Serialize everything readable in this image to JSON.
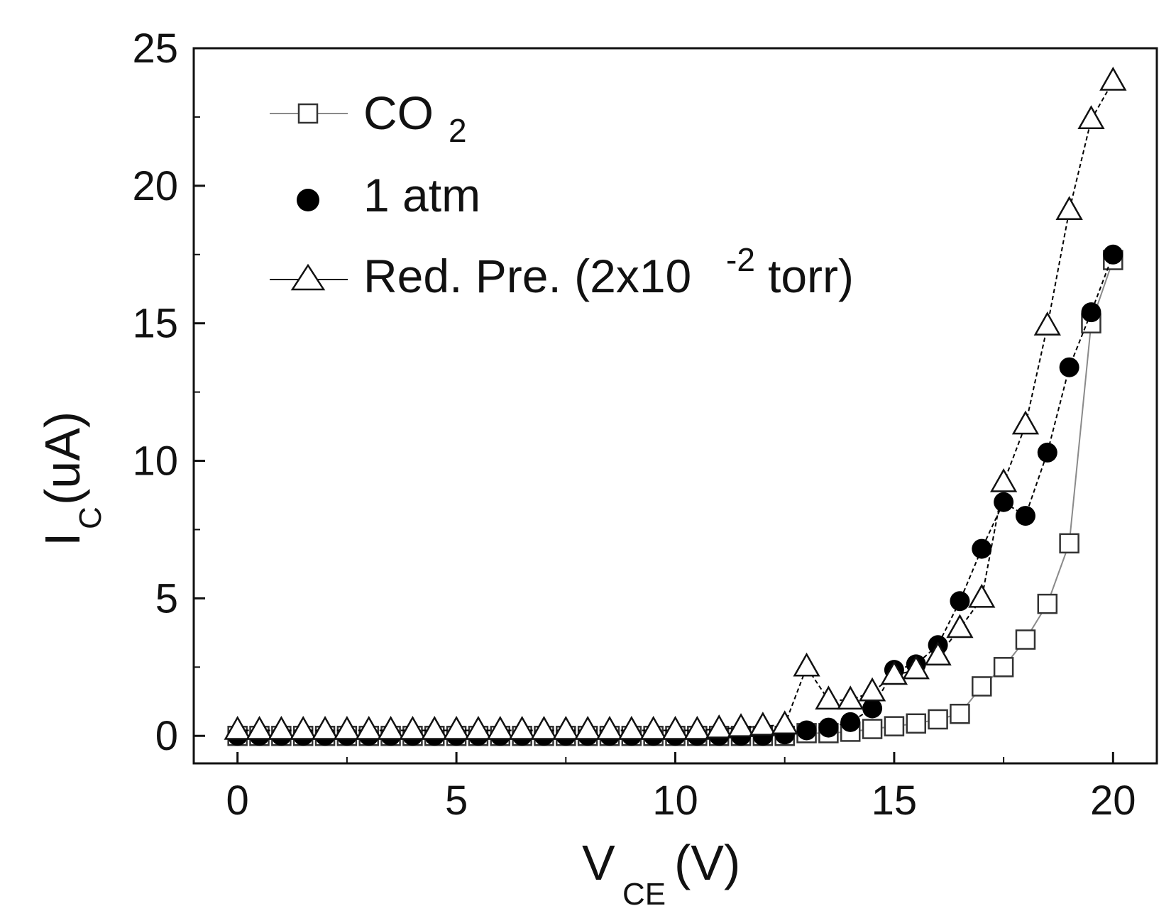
{
  "chart_data": {
    "type": "scatter",
    "title": "",
    "xlabel": {
      "main": "V",
      "sub": "CE",
      "unit": "(V)"
    },
    "ylabel": {
      "main": "I",
      "sub": "C",
      "unit": " (uA)"
    },
    "xlim": [
      -1,
      21
    ],
    "ylim": [
      -1,
      25
    ],
    "xticks": [
      0,
      5,
      10,
      15,
      20
    ],
    "yticks": [
      0,
      5,
      10,
      15,
      20,
      25
    ],
    "grid": false,
    "legend_position": "top-left",
    "series": [
      {
        "name": "CO2",
        "legend": {
          "main": "CO",
          "sub": "2",
          "sup": "",
          "tail": ""
        },
        "marker": "open-square",
        "color": "#8a8a8a",
        "line_style": "solid",
        "x": [
          0,
          0.5,
          1,
          1.5,
          2,
          2.5,
          3,
          3.5,
          4,
          4.5,
          5,
          5.5,
          6,
          6.5,
          7,
          7.5,
          8,
          8.5,
          9,
          9.5,
          10,
          10.5,
          11,
          11.5,
          12,
          12.5,
          13,
          13.5,
          14,
          14.5,
          15,
          15.5,
          16,
          16.5,
          17,
          17.5,
          18,
          18.5,
          19,
          19.5,
          20
        ],
        "y": [
          0,
          0,
          0,
          0,
          0,
          0,
          0,
          0,
          0,
          0,
          0,
          0,
          0,
          0,
          0,
          0,
          0,
          0,
          0,
          0,
          0,
          0,
          0,
          0,
          0,
          0,
          0.1,
          0.1,
          0.15,
          0.25,
          0.35,
          0.45,
          0.6,
          0.8,
          1.8,
          2.5,
          3.5,
          4.8,
          7.0,
          15.0,
          17.3
        ]
      },
      {
        "name": "1 atm",
        "legend": {
          "main": "1 atm",
          "sub": "",
          "sup": "",
          "tail": ""
        },
        "marker": "filled-circle",
        "color": "#000000",
        "line_style": "dashed",
        "x": [
          0,
          0.5,
          1,
          1.5,
          2,
          2.5,
          3,
          3.5,
          4,
          4.5,
          5,
          5.5,
          6,
          6.5,
          7,
          7.5,
          8,
          8.5,
          9,
          9.5,
          10,
          10.5,
          11,
          11.5,
          12,
          12.5,
          13,
          13.5,
          14,
          14.5,
          15,
          15.5,
          16,
          16.5,
          17,
          17.5,
          18,
          18.5,
          19,
          19.5,
          20
        ],
        "y": [
          0,
          0,
          0,
          0,
          0,
          0,
          0,
          0,
          0,
          0,
          0,
          0,
          0,
          0,
          0,
          0,
          0,
          0,
          0,
          0,
          0,
          0,
          0,
          0,
          0,
          0.05,
          0.2,
          0.3,
          0.5,
          1.0,
          2.4,
          2.6,
          3.3,
          4.9,
          6.8,
          8.5,
          8.0,
          10.3,
          13.4,
          15.4,
          17.5
        ]
      },
      {
        "name": "Red. Pre. (2x10-2torr)",
        "legend": {
          "main": "Red. Pre. (2x10",
          "sub": "",
          "sup": "-2",
          "tail": "torr)"
        },
        "marker": "open-triangle",
        "color": "#000000",
        "line_style": "dashed",
        "x": [
          0,
          0.5,
          1,
          1.5,
          2,
          2.5,
          3,
          3.5,
          4,
          4.5,
          5,
          5.5,
          6,
          6.5,
          7,
          7.5,
          8,
          8.5,
          9,
          9.5,
          10,
          10.5,
          11,
          11.5,
          12,
          12.5,
          13,
          13.5,
          14,
          14.5,
          15,
          15.5,
          16,
          16.5,
          17,
          17.5,
          18,
          18.5,
          19,
          19.5,
          20
        ],
        "y": [
          0.2,
          0.2,
          0.2,
          0.2,
          0.2,
          0.2,
          0.2,
          0.2,
          0.2,
          0.2,
          0.2,
          0.2,
          0.2,
          0.2,
          0.2,
          0.2,
          0.2,
          0.2,
          0.2,
          0.2,
          0.2,
          0.2,
          0.25,
          0.3,
          0.35,
          0.4,
          2.5,
          1.3,
          1.3,
          1.6,
          2.2,
          2.4,
          2.9,
          3.9,
          5.0,
          9.2,
          11.3,
          14.9,
          19.1,
          22.4,
          23.8
        ]
      }
    ]
  }
}
